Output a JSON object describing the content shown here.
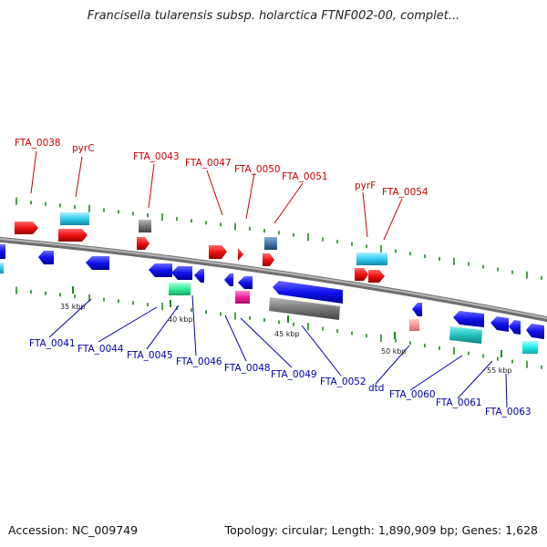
{
  "title": "Francisella tularensis subsp. holarctica FTNF002-00, complet...",
  "footer": {
    "accession": "Accession: NC_009749",
    "summary": "Topology: circular; Length: 1,890,909 bp; Genes: 1,628"
  },
  "colors": {
    "backbone": "#8a8a8a",
    "forward_label": "#cc0000",
    "reverse_label": "#0000aa",
    "tick": "#1a8a1a"
  },
  "scale_labels": [
    "35 kbp",
    "40 kbp",
    "45 kbp",
    "50 kbp",
    "55 kbp"
  ],
  "top_labels": [
    "FTA_0038",
    "pyrC",
    "FTA_0043",
    "FTA_0047",
    "FTA_0050",
    "FTA_0051",
    "pyrF",
    "FTA_0054"
  ],
  "bottom_labels": [
    "FTA_0041",
    "FTA_0044",
    "FTA_0045",
    "FTA_0046",
    "FTA_0048",
    "FTA_0049",
    "FTA_0052",
    "dtd",
    "FTA_0060",
    "FTA_0061",
    "FTA_0063"
  ]
}
